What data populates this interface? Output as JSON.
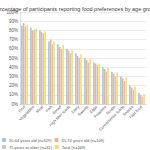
{
  "chart_data": {
    "type": "bar",
    "title": "Percentage of participants reporting food preferences by age group",
    "categories": [
      "Fruit",
      "Vegetables",
      "Meat",
      "Fish",
      "Bread",
      "High fiber foods",
      "Dairy",
      "Sweets",
      "Eggs",
      "Potatoes",
      "Soups",
      "Convenience foods",
      "Snacks",
      "Fast food"
    ],
    "series": [
      {
        "name": "50-64 years old (n=329)",
        "color": "#9dc3e6",
        "values": [
          85,
          83,
          80,
          68,
          65,
          60,
          55,
          50,
          45,
          40,
          35,
          30,
          20,
          12
        ]
      },
      {
        "name": "65-74 years old (n=109)",
        "color": "#f4b183",
        "values": [
          88,
          80,
          78,
          70,
          62,
          58,
          52,
          48,
          44,
          38,
          33,
          28,
          18,
          10
        ]
      },
      {
        "name": "75 years or older (n=31)",
        "color": "#c9c9c9",
        "values": [
          84,
          81,
          77,
          65,
          60,
          55,
          50,
          45,
          42,
          35,
          30,
          25,
          15,
          8
        ]
      },
      {
        "name": "Total (n=469)",
        "color": "#ffd966",
        "values": [
          86,
          82,
          79,
          68,
          64,
          59,
          54,
          49,
          44,
          39,
          34,
          29,
          19,
          11
        ]
      }
    ],
    "ylim": [
      0,
      100
    ],
    "yticks": [
      {
        "value": 0,
        "label": "0%"
      },
      {
        "value": 10,
        "label": "10%"
      },
      {
        "value": 20,
        "label": "20%"
      },
      {
        "value": 30,
        "label": "30%"
      },
      {
        "value": 40,
        "label": "40%"
      },
      {
        "value": 50,
        "label": "50%"
      },
      {
        "value": 60,
        "label": "60%"
      },
      {
        "value": 70,
        "label": "70%"
      },
      {
        "value": 80,
        "label": "80%"
      },
      {
        "value": 90,
        "label": "90%"
      },
      {
        "value": 100,
        "label": "100%"
      }
    ],
    "grid": true,
    "legend": "bottom"
  }
}
